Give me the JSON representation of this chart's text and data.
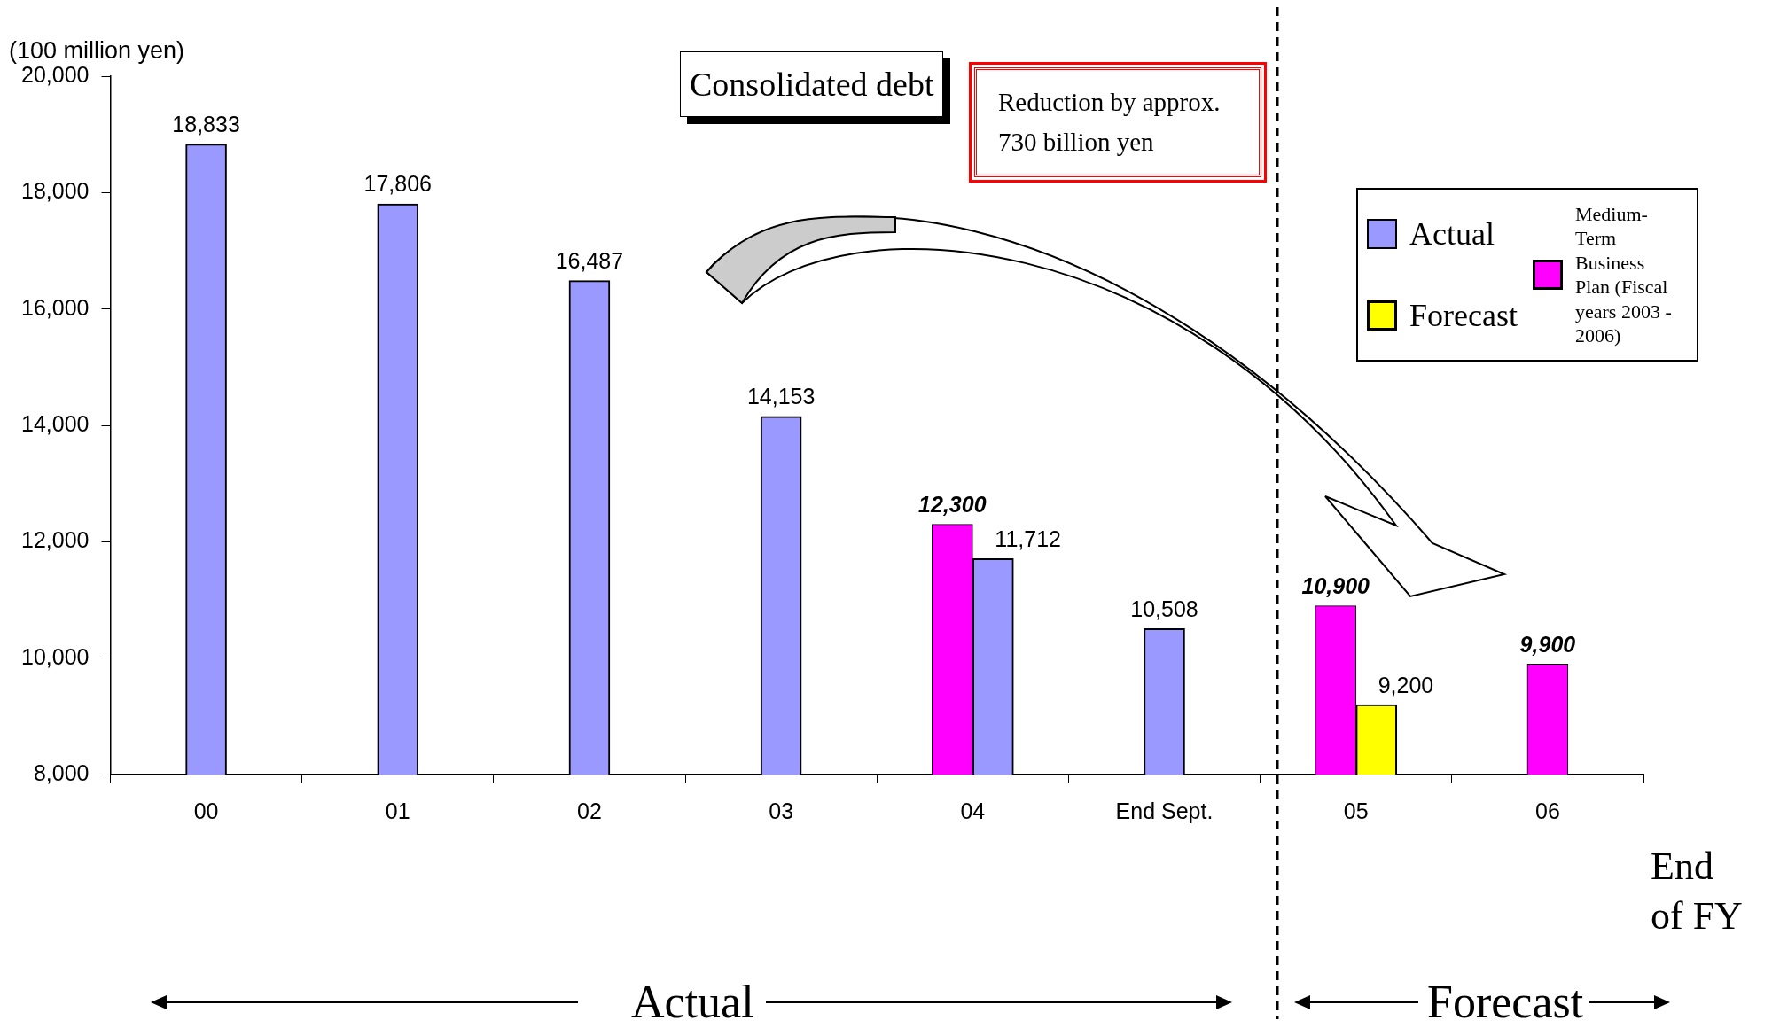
{
  "chart_data": {
    "type": "bar",
    "xlabel": "End of FY",
    "ylabel": "(100 million yen)",
    "categories": [
      "00",
      "01",
      "02",
      "03",
      "04",
      "End Sept.",
      "05",
      "06"
    ],
    "series": [
      {
        "name": "Actual",
        "color": "#9999ff",
        "values": [
          18833,
          17806,
          16487,
          14153,
          11712,
          10508,
          null,
          null
        ],
        "value_labels": [
          "18,833",
          "17,806",
          "16,487",
          "14,153",
          "11,712",
          "10,508",
          null,
          null
        ]
      },
      {
        "name": "Forecast",
        "color": "#ffff00",
        "values": [
          null,
          null,
          null,
          null,
          null,
          null,
          9200,
          null
        ],
        "value_labels": [
          null,
          null,
          null,
          null,
          null,
          null,
          "9,200",
          null
        ]
      },
      {
        "name": "Medium-Term Business Plan (Fiscal years 2003 - 2006)",
        "color": "#ff00ff",
        "values": [
          null,
          null,
          null,
          null,
          12300,
          null,
          10900,
          9900
        ],
        "value_labels": [
          null,
          null,
          null,
          null,
          "12,300",
          null,
          "10,900",
          "9,900"
        ]
      }
    ],
    "ylim": [
      8000,
      20000
    ],
    "yticks": [
      {
        "value": 8000,
        "label": "8,000"
      },
      {
        "value": 10000,
        "label": "10,000"
      },
      {
        "value": 12000,
        "label": "12,000"
      },
      {
        "value": 14000,
        "label": "14,000"
      },
      {
        "value": 16000,
        "label": "16,000"
      },
      {
        "value": 18000,
        "label": "18,000"
      },
      {
        "value": 20000,
        "label": "20,000"
      }
    ],
    "legend": "top right",
    "annotations": [
      "Consolidated debt",
      "Reduction by approx. 730 billion yen",
      "Actual",
      "Forecast"
    ]
  }
}
